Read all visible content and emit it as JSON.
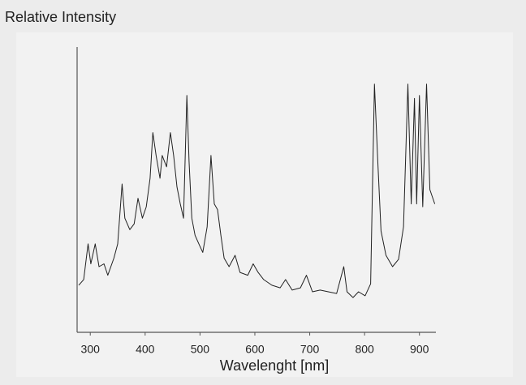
{
  "chart_data": {
    "type": "line",
    "ylabel": "Relative Intensity",
    "xlabel": "Wavelenght [nm]",
    "color": "#222222",
    "xlim": [
      276,
      930
    ],
    "ylim": [
      0,
      100
    ],
    "xticks": [
      300,
      400,
      500,
      600,
      700,
      800,
      900
    ],
    "x": [
      279,
      288,
      296,
      301,
      309,
      316,
      325,
      332,
      343,
      350,
      358,
      363,
      372,
      380,
      387,
      395,
      402,
      409,
      414,
      420,
      427,
      431,
      439,
      446,
      452,
      458,
      464,
      470,
      476,
      480,
      485,
      491,
      498,
      505,
      513,
      520,
      526,
      532,
      538,
      544,
      553,
      564,
      573,
      587,
      597,
      606,
      616,
      631,
      646,
      656,
      668,
      683,
      694,
      705,
      719,
      734,
      749,
      762,
      768,
      779,
      789,
      801,
      811,
      818,
      824,
      830,
      839,
      851,
      862,
      871,
      879,
      885,
      891,
      895,
      900,
      906,
      913,
      919,
      928
    ],
    "values": [
      16.5,
      18.5,
      31,
      24,
      31,
      23,
      24,
      20,
      26,
      31,
      52,
      40,
      36,
      38,
      47,
      40,
      44,
      54,
      70,
      62,
      54,
      62,
      58,
      70,
      62,
      51,
      45,
      40,
      83,
      60,
      40,
      34,
      31,
      28,
      37,
      62,
      45,
      43,
      34,
      26,
      23,
      27,
      21,
      20,
      24,
      21,
      18.5,
      16.5,
      15.6,
      18.5,
      14.8,
      15.6,
      20,
      14.2,
      14.8,
      14.2,
      13.6,
      23,
      14.2,
      12.2,
      14.2,
      12.8,
      17,
      87,
      60,
      35.5,
      27,
      23,
      25.6,
      37,
      87,
      45,
      82,
      45,
      83,
      44,
      87,
      50,
      45
    ]
  }
}
